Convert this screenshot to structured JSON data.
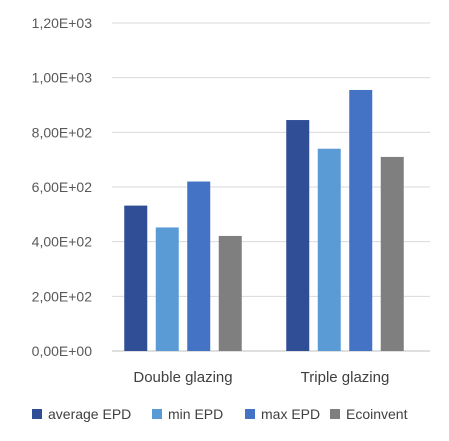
{
  "chart_data": {
    "type": "bar",
    "categories": [
      "Double glazing",
      "Triple glazing"
    ],
    "series": [
      {
        "name": "average EPD",
        "color": "#2F4E96",
        "values": [
          532,
          845
        ]
      },
      {
        "name": "min EPD",
        "color": "#5B9BD5",
        "values": [
          452,
          740
        ]
      },
      {
        "name": "max EPD",
        "color": "#4472C4",
        "values": [
          620,
          955
        ]
      },
      {
        "name": "Ecoinvent",
        "color": "#7F7F7F",
        "values": [
          421,
          710
        ]
      }
    ],
    "yticks": [
      "0,00E+00",
      "2,00E+02",
      "4,00E+02",
      "6,00E+02",
      "8,00E+02",
      "1,00E+03",
      "1,20E+03"
    ],
    "ylim": [
      0,
      1200
    ],
    "grid": true,
    "legend": "bottom"
  }
}
